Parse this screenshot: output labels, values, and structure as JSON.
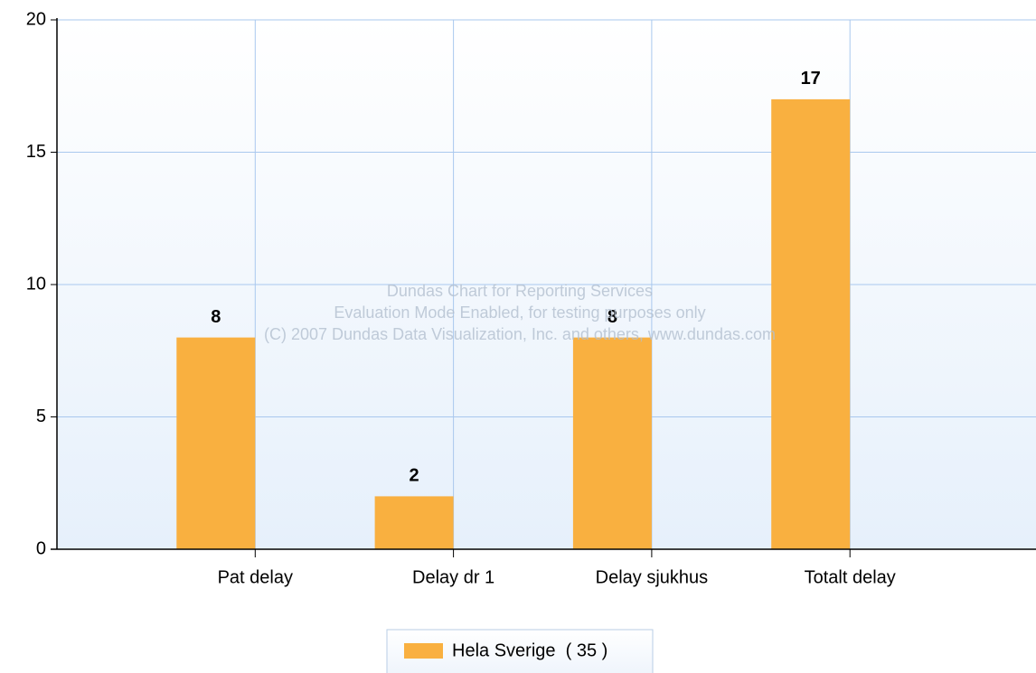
{
  "chart_data": {
    "type": "bar",
    "categories": [
      "Pat delay",
      "Delay dr 1",
      "Delay sjukhus",
      "Totalt delay"
    ],
    "series": [
      {
        "name": "Hela Sverige  ( 35 )",
        "color": "#f9b040",
        "values": [
          8,
          2,
          8,
          17
        ]
      }
    ],
    "ylim": [
      0,
      20
    ],
    "yticks": [
      0,
      5,
      10,
      15,
      20
    ],
    "grid": true,
    "watermark": [
      "Dundas Chart for Reporting Services",
      "Evaluation Mode Enabled, for testing purposes only",
      "(C) 2007 Dundas Data Visualization, Inc. and others, www.dundas.com"
    ]
  }
}
